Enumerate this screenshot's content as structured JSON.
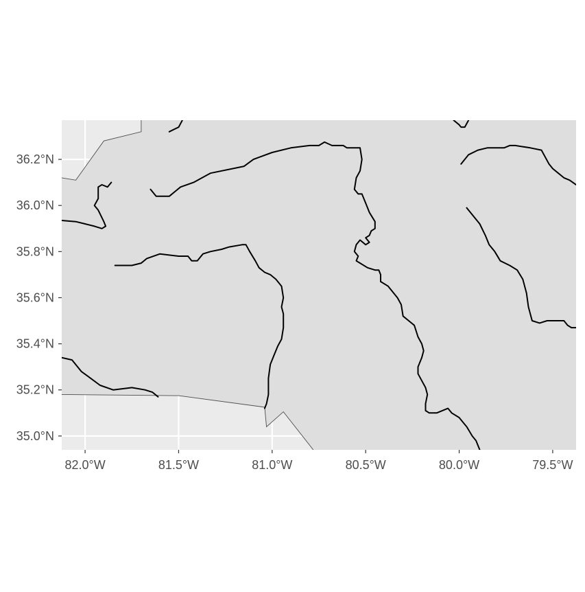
{
  "map": {
    "colors": {
      "background": "#ffffff",
      "panel": "#ebebeb",
      "region_fill": "#dedede",
      "gridline": "#ffffff",
      "river": "#000000",
      "border": "#4d4d4d",
      "tick_text": "#4d4d4d",
      "tick_mark": "#333333"
    },
    "extent": {
      "lon": [
        -82.125,
        -79.375
      ],
      "lat": [
        34.94,
        36.37
      ]
    },
    "x_ticks": [
      {
        "value": -82.0,
        "label": "82.0°W"
      },
      {
        "value": -81.5,
        "label": "81.5°W"
      },
      {
        "value": -81.0,
        "label": "81.0°W"
      },
      {
        "value": -80.5,
        "label": "80.5°W"
      },
      {
        "value": -80.0,
        "label": "80.0°W"
      },
      {
        "value": -79.5,
        "label": "79.5°W"
      }
    ],
    "y_ticks": [
      {
        "value": 36.2,
        "label": "36.2°N"
      },
      {
        "value": 36.0,
        "label": "36.0°N"
      },
      {
        "value": 35.8,
        "label": "35.8°N"
      },
      {
        "value": 35.6,
        "label": "35.6°N"
      },
      {
        "value": 35.4,
        "label": "35.4°N"
      },
      {
        "value": 35.2,
        "label": "35.2°N"
      },
      {
        "value": 35.0,
        "label": "35.0°N"
      }
    ],
    "borders": [
      {
        "name": "northwest-state-border",
        "points": [
          [
            -82.125,
            36.12
          ],
          [
            -82.05,
            36.11
          ],
          [
            -81.9,
            36.28
          ],
          [
            -81.7,
            36.32
          ],
          [
            -81.7,
            36.37
          ]
        ]
      },
      {
        "name": "southern-state-border",
        "points": [
          [
            -82.125,
            35.18
          ],
          [
            -81.5,
            35.175
          ],
          [
            -81.04,
            35.125
          ],
          [
            -81.03,
            35.04
          ],
          [
            -80.94,
            35.105
          ],
          [
            -80.78,
            34.94
          ]
        ]
      }
    ],
    "rivers": [
      {
        "name": "river-northwest-fragment",
        "points": [
          [
            -81.55,
            36.32
          ],
          [
            -81.5,
            36.34
          ],
          [
            -81.48,
            36.37
          ]
        ]
      },
      {
        "name": "river-northwest-loop",
        "points": [
          [
            -81.86,
            36.1
          ],
          [
            -81.88,
            36.08
          ],
          [
            -81.91,
            36.09
          ],
          [
            -81.93,
            36.08
          ],
          [
            -81.93,
            36.03
          ],
          [
            -81.95,
            36.0
          ],
          [
            -81.93,
            35.98
          ],
          [
            -81.9,
            35.93
          ],
          [
            -81.89,
            35.91
          ],
          [
            -81.91,
            35.9
          ],
          [
            -81.95,
            35.91
          ],
          [
            -82.0,
            35.92
          ],
          [
            -82.05,
            35.93
          ],
          [
            -82.125,
            35.935
          ]
        ]
      },
      {
        "name": "river-yadkin-upper",
        "points": [
          [
            -81.65,
            36.07
          ],
          [
            -81.62,
            36.04
          ],
          [
            -81.55,
            36.04
          ],
          [
            -81.49,
            36.08
          ],
          [
            -81.42,
            36.1
          ],
          [
            -81.33,
            36.14
          ],
          [
            -81.15,
            36.17
          ],
          [
            -81.1,
            36.2
          ],
          [
            -81.0,
            36.23
          ],
          [
            -80.9,
            36.25
          ],
          [
            -80.8,
            36.26
          ],
          [
            -80.75,
            36.26
          ],
          [
            -80.72,
            36.275
          ],
          [
            -80.68,
            36.26
          ],
          [
            -80.62,
            36.26
          ],
          [
            -80.6,
            36.25
          ],
          [
            -80.53,
            36.25
          ],
          [
            -80.52,
            36.2
          ],
          [
            -80.53,
            36.15
          ],
          [
            -80.55,
            36.12
          ],
          [
            -80.56,
            36.07
          ],
          [
            -80.54,
            36.05
          ],
          [
            -80.52,
            36.05
          ],
          [
            -80.5,
            36.01
          ],
          [
            -80.48,
            35.97
          ],
          [
            -80.45,
            35.93
          ],
          [
            -80.45,
            35.9
          ],
          [
            -80.47,
            35.89
          ],
          [
            -80.48,
            35.87
          ],
          [
            -80.5,
            35.86
          ],
          [
            -80.48,
            35.84
          ],
          [
            -80.5,
            35.83
          ],
          [
            -80.53,
            35.85
          ],
          [
            -80.55,
            35.83
          ],
          [
            -80.56,
            35.8
          ],
          [
            -80.54,
            35.78
          ],
          [
            -80.55,
            35.76
          ],
          [
            -80.53,
            35.75
          ],
          [
            -80.49,
            35.73
          ],
          [
            -80.45,
            35.72
          ],
          [
            -80.43,
            35.72
          ],
          [
            -80.42,
            35.7
          ],
          [
            -80.42,
            35.67
          ],
          [
            -80.38,
            35.65
          ],
          [
            -80.33,
            35.6
          ],
          [
            -80.31,
            35.57
          ],
          [
            -80.3,
            35.52
          ],
          [
            -80.27,
            35.5
          ],
          [
            -80.24,
            35.48
          ],
          [
            -80.22,
            35.43
          ],
          [
            -80.2,
            35.4
          ],
          [
            -80.19,
            35.37
          ],
          [
            -80.2,
            35.34
          ],
          [
            -80.22,
            35.3
          ],
          [
            -80.22,
            35.27
          ],
          [
            -80.2,
            35.24
          ],
          [
            -80.18,
            35.21
          ],
          [
            -80.17,
            35.18
          ],
          [
            -80.18,
            35.14
          ],
          [
            -80.18,
            35.11
          ],
          [
            -80.16,
            35.1
          ],
          [
            -80.12,
            35.1
          ],
          [
            -80.09,
            35.11
          ],
          [
            -80.06,
            35.12
          ],
          [
            -80.04,
            35.1
          ],
          [
            -80.0,
            35.08
          ],
          [
            -79.98,
            35.06
          ],
          [
            -79.96,
            35.04
          ],
          [
            -79.93,
            35.0
          ],
          [
            -79.91,
            34.98
          ],
          [
            -79.9,
            34.96
          ],
          [
            -79.89,
            34.94
          ]
        ]
      },
      {
        "name": "river-north-central",
        "points": [
          [
            -80.03,
            36.37
          ],
          [
            -80.0,
            36.35
          ],
          [
            -79.99,
            36.34
          ],
          [
            -79.97,
            36.34
          ],
          [
            -79.95,
            36.37
          ]
        ]
      },
      {
        "name": "river-northeast-upper",
        "points": [
          [
            -79.99,
            36.18
          ],
          [
            -79.95,
            36.22
          ],
          [
            -79.9,
            36.24
          ],
          [
            -79.85,
            36.25
          ],
          [
            -79.76,
            36.25
          ],
          [
            -79.73,
            36.26
          ],
          [
            -79.7,
            36.26
          ],
          [
            -79.62,
            36.25
          ],
          [
            -79.56,
            36.24
          ],
          [
            -79.52,
            36.18
          ],
          [
            -79.5,
            36.16
          ],
          [
            -79.47,
            36.14
          ],
          [
            -79.44,
            36.12
          ],
          [
            -79.41,
            36.11
          ],
          [
            -79.375,
            36.09
          ]
        ]
      },
      {
        "name": "river-northeast-lower",
        "points": [
          [
            -79.96,
            35.99
          ],
          [
            -79.93,
            35.96
          ],
          [
            -79.89,
            35.92
          ],
          [
            -79.86,
            35.87
          ],
          [
            -79.84,
            35.83
          ],
          [
            -79.81,
            35.8
          ],
          [
            -79.78,
            35.76
          ],
          [
            -79.73,
            35.74
          ],
          [
            -79.69,
            35.72
          ],
          [
            -79.66,
            35.68
          ],
          [
            -79.64,
            35.62
          ],
          [
            -79.63,
            35.56
          ],
          [
            -79.61,
            35.5
          ],
          [
            -79.57,
            35.49
          ],
          [
            -79.53,
            35.5
          ],
          [
            -79.48,
            35.5
          ],
          [
            -79.44,
            35.5
          ],
          [
            -79.42,
            35.48
          ],
          [
            -79.4,
            35.47
          ],
          [
            -79.375,
            35.47
          ]
        ]
      },
      {
        "name": "river-catawba-upper",
        "points": [
          [
            -81.84,
            35.74
          ],
          [
            -81.79,
            35.74
          ],
          [
            -81.75,
            35.74
          ],
          [
            -81.7,
            35.75
          ],
          [
            -81.67,
            35.77
          ],
          [
            -81.6,
            35.79
          ],
          [
            -81.5,
            35.78
          ],
          [
            -81.45,
            35.78
          ],
          [
            -81.43,
            35.76
          ],
          [
            -81.4,
            35.76
          ],
          [
            -81.37,
            35.79
          ],
          [
            -81.33,
            35.8
          ],
          [
            -81.27,
            35.81
          ],
          [
            -81.23,
            35.82
          ],
          [
            -81.16,
            35.83
          ],
          [
            -81.14,
            35.83
          ],
          [
            -81.12,
            35.8
          ],
          [
            -81.09,
            35.76
          ],
          [
            -81.07,
            35.73
          ],
          [
            -81.04,
            35.71
          ],
          [
            -81.01,
            35.7
          ],
          [
            -80.98,
            35.68
          ],
          [
            -80.95,
            35.65
          ],
          [
            -80.94,
            35.6
          ],
          [
            -80.95,
            35.56
          ],
          [
            -80.94,
            35.53
          ],
          [
            -80.94,
            35.47
          ],
          [
            -80.95,
            35.42
          ],
          [
            -80.97,
            35.39
          ],
          [
            -80.99,
            35.35
          ],
          [
            -81.01,
            35.31
          ],
          [
            -81.02,
            35.25
          ],
          [
            -81.02,
            35.18
          ],
          [
            -81.03,
            35.14
          ],
          [
            -81.04,
            35.12
          ]
        ]
      },
      {
        "name": "river-southwest",
        "points": [
          [
            -82.125,
            35.34
          ],
          [
            -82.07,
            35.33
          ],
          [
            -82.02,
            35.28
          ],
          [
            -81.97,
            35.25
          ],
          [
            -81.92,
            35.22
          ],
          [
            -81.85,
            35.2
          ],
          [
            -81.75,
            35.21
          ],
          [
            -81.68,
            35.2
          ],
          [
            -81.64,
            35.19
          ],
          [
            -81.61,
            35.17
          ]
        ]
      }
    ]
  }
}
